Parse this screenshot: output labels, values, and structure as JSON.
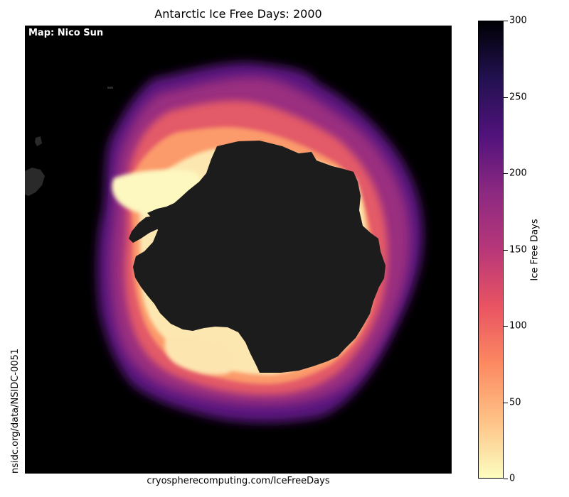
{
  "title": "Antarctic Ice Free Days: 2000",
  "map": {
    "credit": "Map: Nico Sun",
    "source_side": "nsidc.org/data/NSIDC-0051",
    "source_bottom": "cryospherecomputing.com/IceFreeDays"
  },
  "colorbar": {
    "label": "Ice Free Days",
    "min": 0,
    "max": 300,
    "ticks": [
      "0",
      "50",
      "100",
      "150",
      "200",
      "250",
      "300"
    ],
    "colormap": "magma_r",
    "colors": [
      "#fcfdbf",
      "#fec287",
      "#fc8961",
      "#e95462",
      "#b73779",
      "#8c2981",
      "#51127c",
      "#221150",
      "#000004"
    ]
  },
  "colors": {
    "ocean": "#000000",
    "land": "#1c1c1c"
  }
}
